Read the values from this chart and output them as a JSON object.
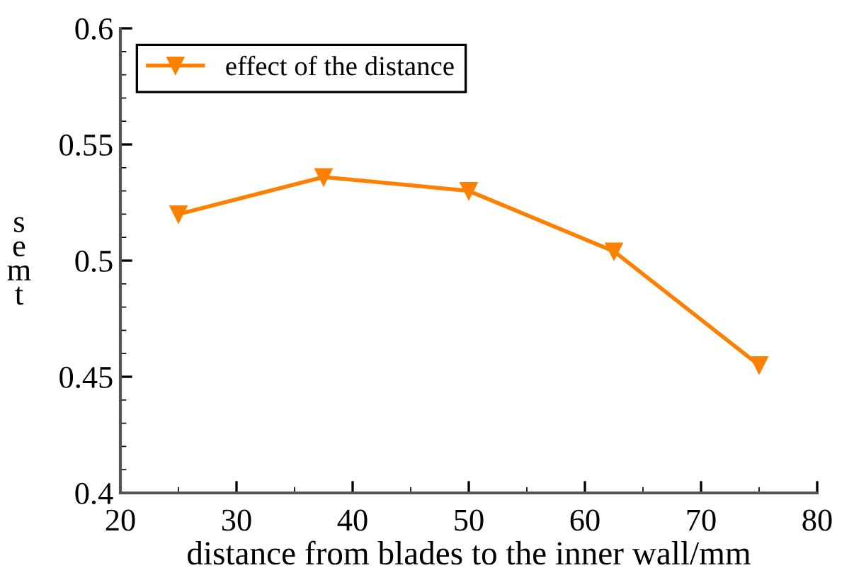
{
  "chart_data": {
    "type": "line",
    "xlabel": "distance from blades to the inner wall/mm",
    "ylabel": "semt",
    "x": [
      25,
      37.5,
      50,
      62.5,
      75
    ],
    "series": [
      {
        "name": "effect of the distance",
        "color": "#ff8000",
        "values": [
          0.52,
          0.536,
          0.53,
          0.504,
          0.455
        ]
      }
    ],
    "xlim": [
      20,
      80
    ],
    "xticks": [
      20,
      30,
      40,
      50,
      60,
      70,
      80
    ],
    "ylim": [
      0.4,
      0.6
    ],
    "yticks": [
      0.4,
      0.45,
      0.5,
      0.55,
      0.6
    ],
    "marker": "triangle",
    "line_style": "solid",
    "legend": "top left",
    "grid": false
  }
}
